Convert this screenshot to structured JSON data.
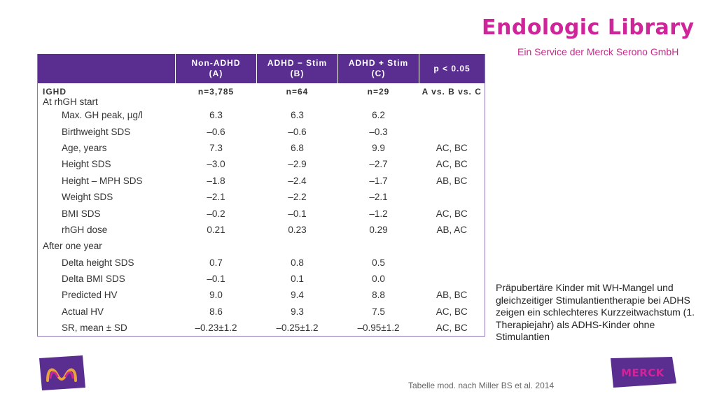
{
  "brand": {
    "title": "Endologic Library",
    "subtitle": "Ein Service der Merck Serono GmbH"
  },
  "table": {
    "headers": [
      {
        "line1": "",
        "line2": ""
      },
      {
        "line1": "Non-ADHD",
        "line2": "(A)"
      },
      {
        "line1": "ADHD − Stim",
        "line2": "(B)"
      },
      {
        "line1": "ADHD + Stim",
        "line2": "(C)"
      },
      {
        "line1": "p < 0.05",
        "line2": ""
      }
    ],
    "start_row": {
      "label_line1": "IGHD",
      "label_line2": "At rhGH start",
      "a": "n=3,785",
      "b": "n=64",
      "c": "n=29",
      "sig": "A vs. B vs. C"
    },
    "rows_at_start": [
      {
        "label": "Max. GH peak, µg/l",
        "a": "6.3",
        "b": "6.3",
        "c": "6.2",
        "sig": ""
      },
      {
        "label": "Birthweight SDS",
        "a": "–0.6",
        "b": "–0.6",
        "c": "–0.3",
        "sig": ""
      },
      {
        "label": "Age, years",
        "a": "7.3",
        "b": "6.8",
        "c": "9.9",
        "sig": "AC, BC"
      },
      {
        "label": "Height SDS",
        "a": "–3.0",
        "b": "–2.9",
        "c": "–2.7",
        "sig": "AC, BC"
      },
      {
        "label": "Height – MPH SDS",
        "a": "–1.8",
        "b": "–2.4",
        "c": "–1.7",
        "sig": "AB, BC"
      },
      {
        "label": "Weight SDS",
        "a": "–2.1",
        "b": "–2.2",
        "c": "–2.1",
        "sig": ""
      },
      {
        "label": "BMI SDS",
        "a": "–0.2",
        "b": "–0.1",
        "c": "–1.2",
        "sig": "AC, BC"
      },
      {
        "label": "rhGH dose",
        "a": "0.21",
        "b": "0.23",
        "c": "0.29",
        "sig": "AB, AC"
      }
    ],
    "group2_label": "After one year",
    "rows_after": [
      {
        "label": "Delta height SDS",
        "a": "0.7",
        "b": "0.8",
        "c": "0.5",
        "sig": ""
      },
      {
        "label": "Delta BMI SDS",
        "a": "–0.1",
        "b": "0.1",
        "c": "0.0",
        "sig": ""
      },
      {
        "label": "Predicted HV",
        "a": "9.0",
        "b": "9.4",
        "c": "8.8",
        "sig": "AB, BC"
      },
      {
        "label": "Actual HV",
        "a": "8.6",
        "b": "9.3",
        "c": "7.5",
        "sig": "AC, BC"
      },
      {
        "label": "SR, mean ± SD",
        "a": "–0.23±1.2",
        "b": "–0.25±1.2",
        "c": "–0.95±1.2",
        "sig": "AC, BC"
      }
    ]
  },
  "note": "Präpubertäre Kinder mit WH-Mangel und gleichzeitiger Stimulantientherapie bei ADHS zeigen ein schlechteres Kurzzeitwachstum (1. Therapiejahr) als ADHS-Kinder ohne Stimulantien",
  "source": "Tabelle mod. nach Miller BS et al. 2014",
  "logos": {
    "left": "merck-m-logo",
    "right_text": "MERCK",
    "accent_color": "#d0249a",
    "purple_color": "#5a2d91"
  }
}
